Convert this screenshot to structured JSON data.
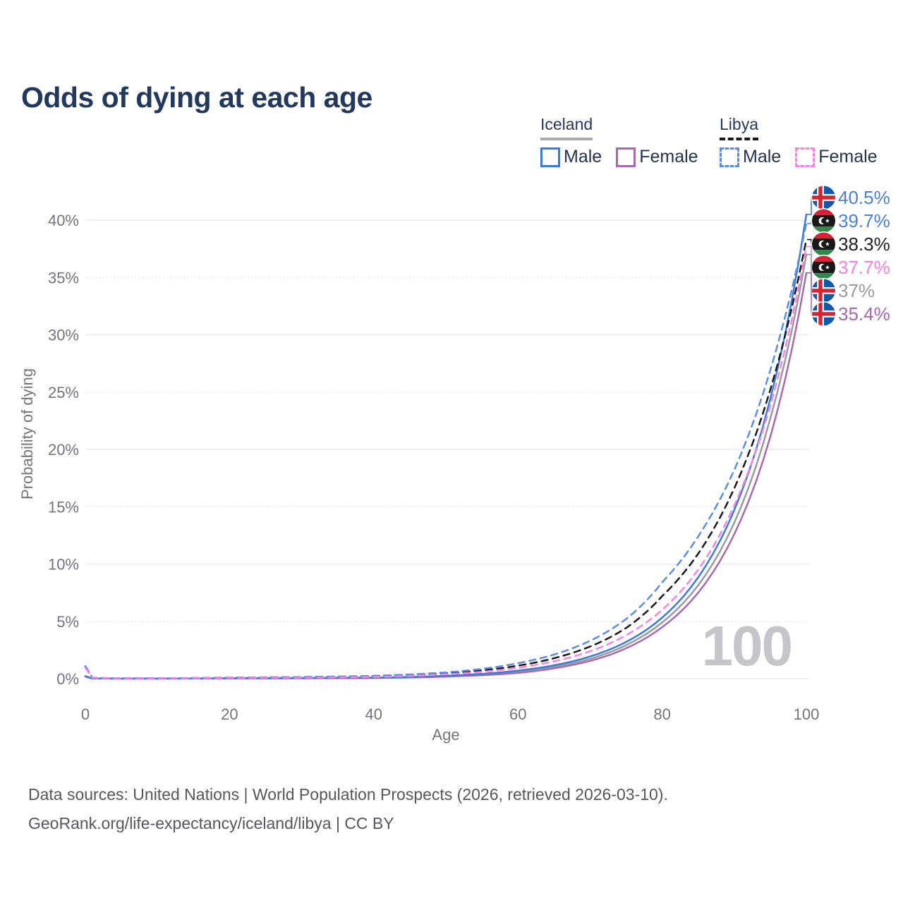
{
  "title": "Odds of dying at each age",
  "watermark": "100",
  "legend": {
    "groups": [
      {
        "country": "Iceland",
        "line_style": "solid",
        "underline_color": "#a9a9ad",
        "items": [
          {
            "label": "Male",
            "color": "#3a7bd8",
            "dashed": false
          },
          {
            "label": "Female",
            "color": "#a869ae",
            "dashed": false
          }
        ]
      },
      {
        "country": "Libya",
        "line_style": "dashed",
        "underline_color": "#1a1a1a",
        "items": [
          {
            "label": "Male",
            "color": "#5b8de0",
            "dashed": true
          },
          {
            "label": "Female",
            "color": "#f584e2",
            "dashed": true
          }
        ]
      }
    ]
  },
  "footer": {
    "line1": "Data sources: United Nations | World Population Prospects (2026, retrieved 2026-03-10).",
    "line2": "GeoRank.org/life-expectancy/iceland/libya | CC BY"
  },
  "chart_data": {
    "type": "line",
    "title": "Odds of dying at each age",
    "xlabel": "Age",
    "ylabel": "Probability of dying",
    "xlim": [
      0,
      100
    ],
    "ylim": [
      0,
      42
    ],
    "xticks": [
      0,
      20,
      40,
      60,
      80,
      100
    ],
    "yticks": [
      0,
      5,
      10,
      15,
      20,
      25,
      30,
      35,
      40
    ],
    "ytick_labels": [
      "0%",
      "5%",
      "10%",
      "15%",
      "20%",
      "25%",
      "30%",
      "35%",
      "40%"
    ],
    "grid": "horizontal only, major lines solid / minor lines dotted",
    "legend_position": "top-right",
    "age_counter_watermark": "100",
    "series": [
      {
        "name": "Iceland Both sexes",
        "country": "Iceland",
        "sex": "both",
        "color": "#9b9b9f",
        "dashed": false,
        "points": [
          [
            0,
            0.2
          ],
          [
            1,
            0.014
          ],
          [
            5,
            0.007
          ],
          [
            10,
            0.007
          ],
          [
            20,
            0.03
          ],
          [
            30,
            0.045
          ],
          [
            40,
            0.075
          ],
          [
            50,
            0.21
          ],
          [
            55,
            0.36
          ],
          [
            60,
            0.6
          ],
          [
            65,
            1.02
          ],
          [
            70,
            1.73
          ],
          [
            75,
            2.92
          ],
          [
            80,
            4.9
          ],
          [
            85,
            8.15
          ],
          [
            90,
            13.6
          ],
          [
            95,
            22.7
          ],
          [
            100,
            37.0
          ]
        ]
      },
      {
        "name": "Iceland Female",
        "country": "Iceland",
        "sex": "female",
        "color": "#a869ae",
        "dashed": false,
        "points": [
          [
            0,
            0.18
          ],
          [
            1,
            0.012
          ],
          [
            5,
            0.006
          ],
          [
            10,
            0.006
          ],
          [
            20,
            0.02
          ],
          [
            30,
            0.03
          ],
          [
            40,
            0.06
          ],
          [
            50,
            0.18
          ],
          [
            55,
            0.3
          ],
          [
            60,
            0.5
          ],
          [
            65,
            0.9
          ],
          [
            70,
            1.55
          ],
          [
            75,
            2.65
          ],
          [
            80,
            4.49
          ],
          [
            85,
            7.5
          ],
          [
            90,
            12.6
          ],
          [
            95,
            21.1
          ],
          [
            100,
            35.4
          ]
        ]
      },
      {
        "name": "Iceland Male",
        "country": "Iceland",
        "sex": "male",
        "color": "#3a7bd8",
        "dashed": false,
        "points": [
          [
            0,
            0.22
          ],
          [
            1,
            0.015
          ],
          [
            5,
            0.008
          ],
          [
            10,
            0.008
          ],
          [
            20,
            0.04
          ],
          [
            30,
            0.06
          ],
          [
            40,
            0.09
          ],
          [
            50,
            0.25
          ],
          [
            55,
            0.42
          ],
          [
            60,
            0.7
          ],
          [
            65,
            1.16
          ],
          [
            70,
            1.93
          ],
          [
            75,
            3.2
          ],
          [
            80,
            5.32
          ],
          [
            85,
            8.84
          ],
          [
            90,
            14.7
          ],
          [
            95,
            24.4
          ],
          [
            100,
            40.5
          ]
        ]
      },
      {
        "name": "Libya Both sexes",
        "country": "Libya",
        "sex": "both",
        "color": "#1a1a1a",
        "dashed": true,
        "points": [
          [
            0,
            1.0
          ],
          [
            1,
            0.07
          ],
          [
            5,
            0.035
          ],
          [
            10,
            0.035
          ],
          [
            20,
            0.08
          ],
          [
            30,
            0.12
          ],
          [
            40,
            0.2
          ],
          [
            50,
            0.46
          ],
          [
            55,
            0.72
          ],
          [
            60,
            1.13
          ],
          [
            65,
            1.78
          ],
          [
            70,
            2.8
          ],
          [
            75,
            4.42
          ],
          [
            80,
            7.2
          ],
          [
            85,
            10.9
          ],
          [
            90,
            16.6
          ],
          [
            95,
            25.2
          ],
          [
            100,
            38.3
          ]
        ]
      },
      {
        "name": "Libya Male",
        "country": "Libya",
        "sex": "male",
        "color": "#5b8de0",
        "dashed": true,
        "points": [
          [
            0,
            1.1
          ],
          [
            1,
            0.08
          ],
          [
            5,
            0.04
          ],
          [
            10,
            0.04
          ],
          [
            20,
            0.1
          ],
          [
            30,
            0.15
          ],
          [
            40,
            0.25
          ],
          [
            50,
            0.55
          ],
          [
            55,
            0.85
          ],
          [
            60,
            1.35
          ],
          [
            65,
            2.1
          ],
          [
            70,
            3.3
          ],
          [
            75,
            5.2
          ],
          [
            80,
            8.4
          ],
          [
            85,
            12.4
          ],
          [
            90,
            18.2
          ],
          [
            95,
            26.9
          ],
          [
            100,
            39.7
          ]
        ]
      },
      {
        "name": "Libya Female",
        "country": "Libya",
        "sex": "female",
        "color": "#f584e2",
        "dashed": true,
        "points": [
          [
            0,
            0.95
          ],
          [
            1,
            0.06
          ],
          [
            5,
            0.03
          ],
          [
            10,
            0.03
          ],
          [
            20,
            0.06
          ],
          [
            30,
            0.09
          ],
          [
            40,
            0.15
          ],
          [
            50,
            0.38
          ],
          [
            55,
            0.6
          ],
          [
            60,
            0.95
          ],
          [
            65,
            1.51
          ],
          [
            70,
            2.39
          ],
          [
            75,
            3.79
          ],
          [
            80,
            6.0
          ],
          [
            85,
            9.5
          ],
          [
            90,
            15.1
          ],
          [
            95,
            23.8
          ],
          [
            100,
            37.7
          ]
        ]
      }
    ],
    "end_labels": [
      {
        "text": "40.5%",
        "value": 40.5,
        "series": "Iceland Male",
        "flag": "iceland",
        "color": "#4a80da"
      },
      {
        "text": "39.7%",
        "value": 39.7,
        "series": "Libya Male",
        "flag": "libya",
        "color": "#4a80da"
      },
      {
        "text": "38.3%",
        "value": 38.3,
        "series": "Libya Both sexes",
        "flag": "libya",
        "color": "#1f1f1f"
      },
      {
        "text": "37.7%",
        "value": 37.7,
        "series": "Libya Female",
        "flag": "libya",
        "color": "#f57fe2"
      },
      {
        "text": "37%",
        "value": 37.0,
        "series": "Iceland Both sexes",
        "flag": "iceland",
        "color": "#9b9ba1"
      },
      {
        "text": "35.4%",
        "value": 35.4,
        "series": "Iceland Female",
        "flag": "iceland",
        "color": "#a768b0"
      }
    ]
  }
}
